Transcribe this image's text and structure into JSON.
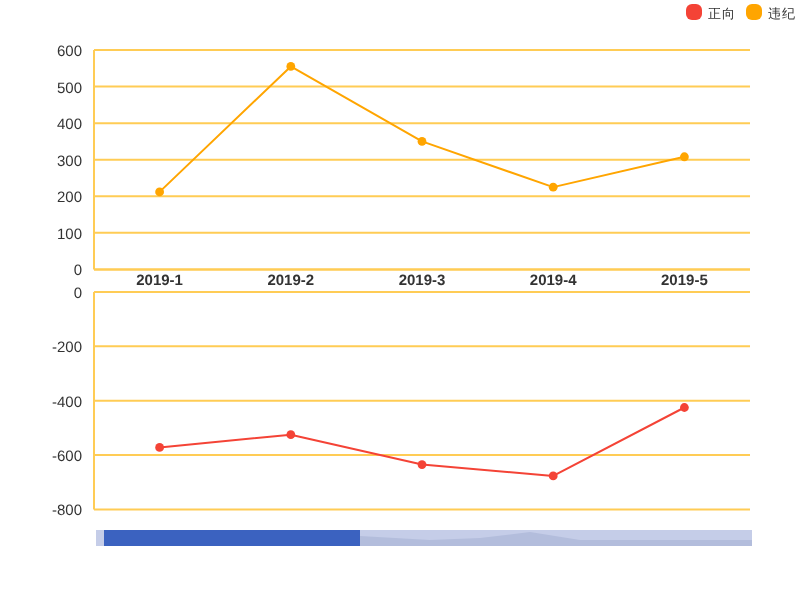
{
  "chart_data": [
    {
      "type": "line",
      "categories": [
        "2019-1",
        "2019-2",
        "2019-3",
        "2019-4",
        "2019-5"
      ],
      "series": [
        {
          "name": "违纪",
          "color": "#ffa500",
          "values": [
            212,
            555,
            350,
            225,
            308
          ]
        }
      ],
      "ylim": [
        0,
        600
      ],
      "yticks": [
        0,
        100,
        200,
        300,
        400,
        500,
        600
      ],
      "grid": "y",
      "legend": "top right",
      "marker": "circle"
    },
    {
      "type": "line",
      "categories": [
        "2019-1",
        "2019-2",
        "2019-3",
        "2019-4",
        "2019-5"
      ],
      "series": [
        {
          "name": "正向",
          "color": "#f44336",
          "values": [
            -572,
            -525,
            -635,
            -677,
            -425
          ]
        }
      ],
      "ylim": [
        -800,
        0
      ],
      "yticks": [
        -800,
        -600,
        -400,
        -200,
        0
      ],
      "grid": "y",
      "legend": "top right",
      "marker": "circle",
      "tick_labels": "y"
    }
  ]
}
